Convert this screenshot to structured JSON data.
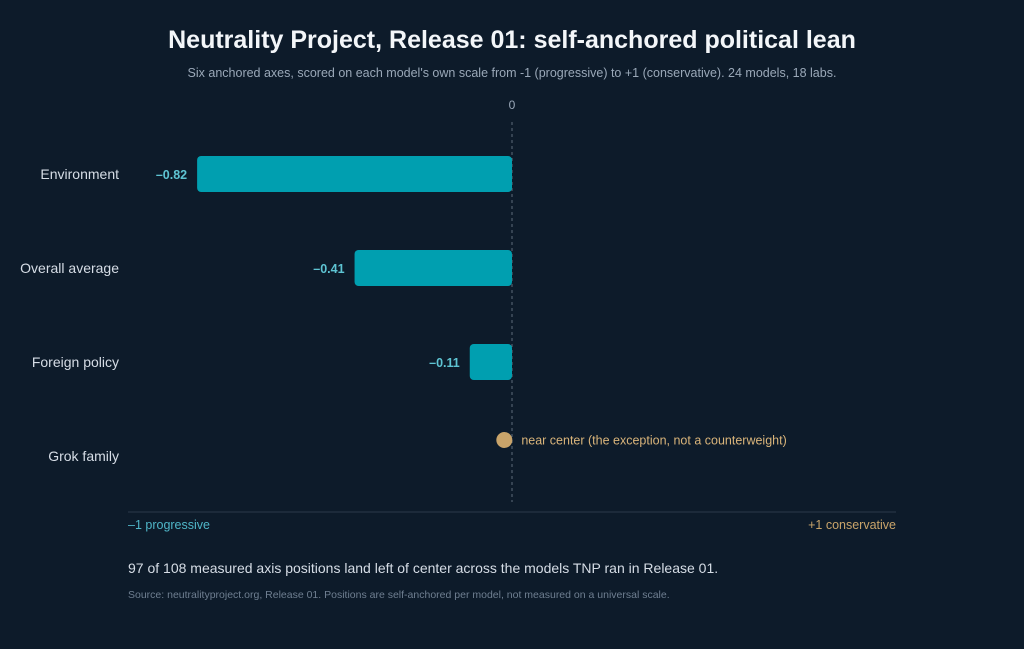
{
  "header": {
    "title": "Neutrality Project, Release 01: self-anchored political lean",
    "subtitle": "Six anchored axes, scored on each model's own scale from -1 (progressive) to +1 (conservative). 24 models, 18 labs."
  },
  "chart_data": {
    "type": "bar",
    "orientation": "horizontal",
    "categories": [
      "Environment",
      "Overall average",
      "Foreign policy",
      "Grok family"
    ],
    "values": [
      -0.82,
      -0.41,
      -0.11,
      -0.02
    ],
    "value_labels": [
      "–0.82",
      "–0.41",
      "–0.11",
      ""
    ],
    "markers": [
      {
        "category": "Grok family",
        "value": -0.02,
        "label": "near center (the exception, not a counterweight)"
      }
    ],
    "xlim": [
      -1,
      1
    ],
    "zero_tick_label": "0",
    "axis_left_label": "–1 progressive",
    "axis_right_label": "+1 conservative",
    "colors": {
      "bar": "#009fb0",
      "marker": "#c9a46a",
      "zero_line": "#5d6b7a",
      "baseline": "#2c3a4b"
    }
  },
  "footer": {
    "summary": "97 of 108 measured axis positions land left of center across the models TNP ran in Release 01.",
    "source": "Source: neutralityproject.org, Release 01. Positions are self-anchored per model, not measured on a universal scale."
  }
}
